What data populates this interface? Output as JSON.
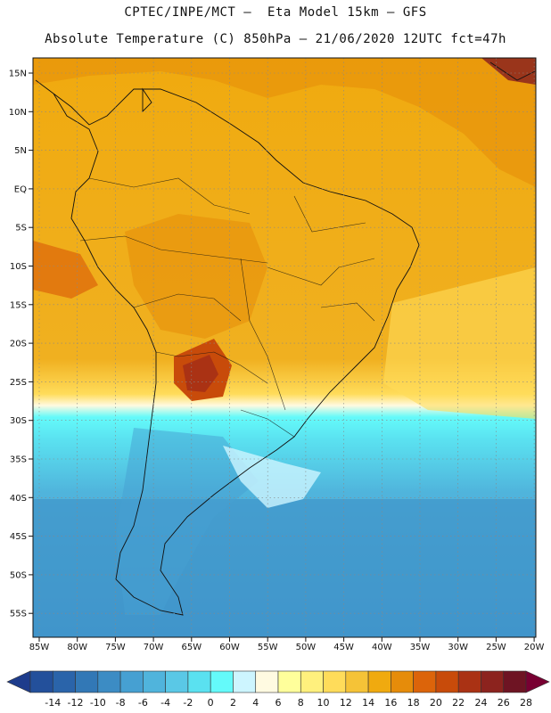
{
  "header": {
    "line1": "CPTEC/INPE/MCT –  Eta Model 15km – GFS",
    "line2": "Absolute Temperature (C) 850hPa – 21/06/2020 12UTC fct=47h"
  },
  "map": {
    "lat_labels": [
      "15N",
      "10N",
      "5N",
      "EQ",
      "5S",
      "10S",
      "15S",
      "20S",
      "25S",
      "30S",
      "35S",
      "40S",
      "45S",
      "50S",
      "55S"
    ],
    "lon_labels": [
      "85W",
      "80W",
      "75W",
      "70W",
      "65W",
      "60W",
      "55W",
      "50W",
      "45W",
      "40W",
      "35W",
      "30W",
      "25W",
      "20W"
    ]
  },
  "colorbar": {
    "values": [
      "-14",
      "-12",
      "-10",
      "-8",
      "-6",
      "-4",
      "-2",
      "0",
      "2",
      "4",
      "6",
      "8",
      "10",
      "12",
      "14",
      "16",
      "18",
      "20",
      "22",
      "24",
      "26",
      "28"
    ],
    "colors": [
      "#1e3c8c",
      "#23509b",
      "#2a64aa",
      "#3278b6",
      "#3c8cc4",
      "#46a0d2",
      "#50b4dc",
      "#5ac8e6",
      "#5ae1f0",
      "#64fafa",
      "#cdf5ff",
      "#fffae1",
      "#ffff9b",
      "#fff07d",
      "#ffdc5a",
      "#f5c337",
      "#f0aa0f",
      "#e68c0a",
      "#dc640a",
      "#c84b0a",
      "#aa3214",
      "#8c231e",
      "#6e1423",
      "#780032"
    ]
  }
}
